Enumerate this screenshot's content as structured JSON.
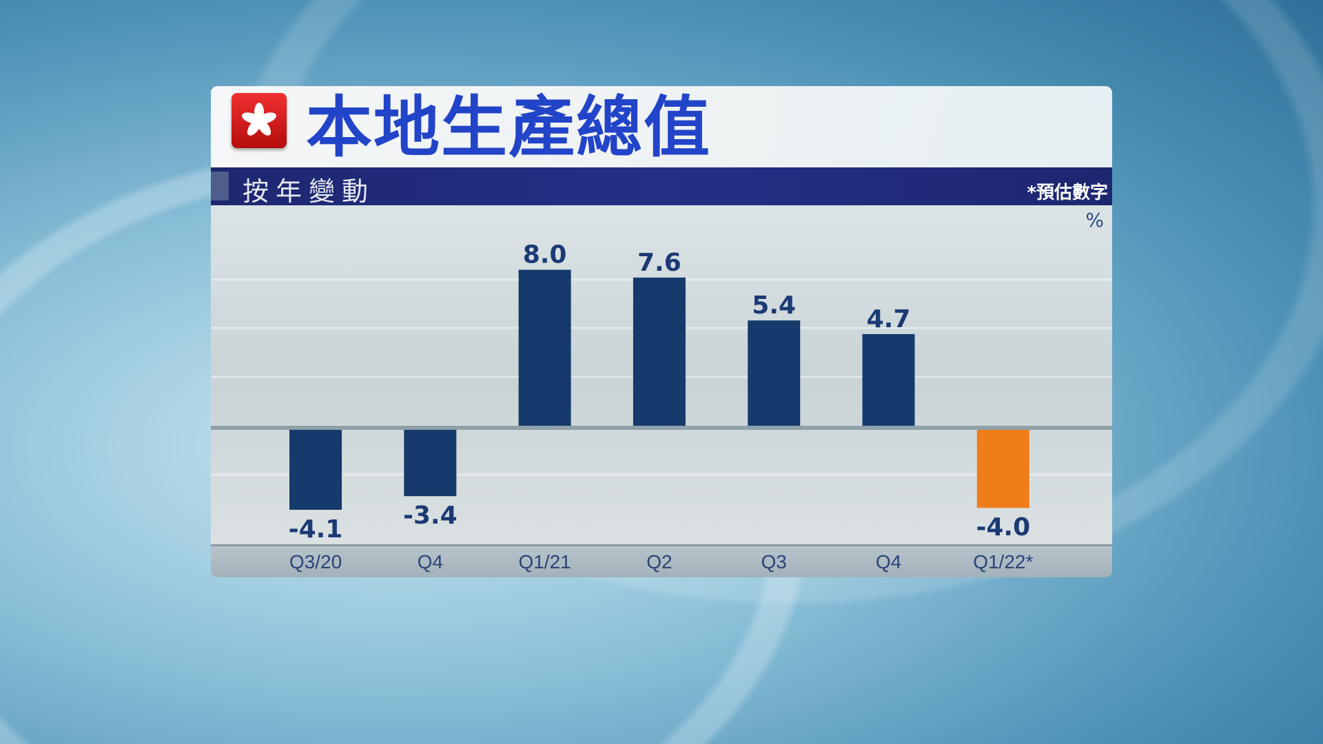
{
  "header": {
    "title": "本地生產總值",
    "subtitle": "按年變動",
    "note": "*預估數字",
    "flag_icon": "hong-kong-flag-icon"
  },
  "chart_data": {
    "type": "bar",
    "title": "本地生產總值",
    "subtitle": "按年變動",
    "ylabel": "%",
    "categories": [
      "Q3/20",
      "Q4",
      "Q1/21",
      "Q2",
      "Q3",
      "Q4",
      "Q1/22*"
    ],
    "values": [
      -4.1,
      -3.4,
      8.0,
      7.6,
      5.4,
      4.7,
      -4.0
    ],
    "labels": [
      "-4.1",
      "-3.4",
      "8.0",
      "7.6",
      "5.4",
      "4.7",
      "-4.0"
    ],
    "colors": [
      "#153a6b",
      "#153a6b",
      "#153a6b",
      "#153a6b",
      "#153a6b",
      "#153a6b",
      "#ef7d1a"
    ],
    "footnote": "*預估數字",
    "ylim": [
      -5,
      9
    ],
    "grid": true
  }
}
